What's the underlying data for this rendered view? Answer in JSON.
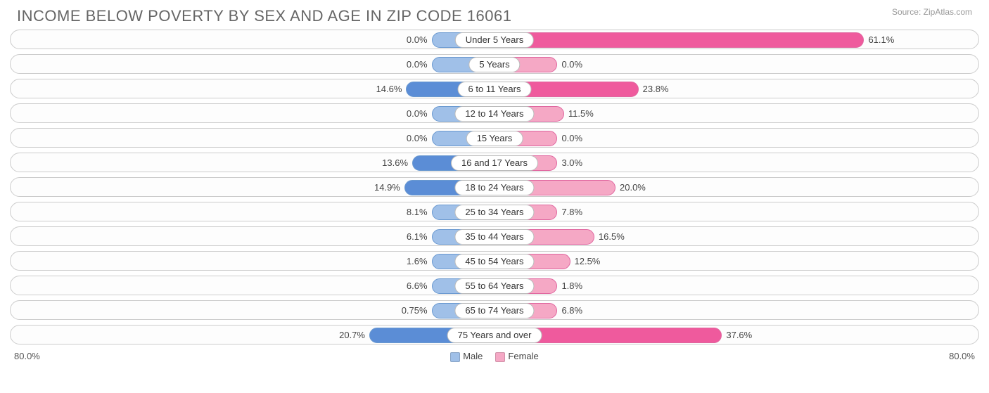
{
  "header": {
    "title": "INCOME BELOW POVERTY BY SEX AND AGE IN ZIP CODE 16061",
    "source": "Source: ZipAtlas.com"
  },
  "chart": {
    "type": "diverging-bar",
    "axis_max": 80.0,
    "axis_label_left": "80.0%",
    "axis_label_right": "80.0%",
    "min_bar_pct": 13.0,
    "colors": {
      "male_fill": "#a0c0e8",
      "male_border": "#6a99d0",
      "female_fill": "#f5a8c5",
      "female_border": "#e0669f",
      "male_solid": "#5b8dd6",
      "female_solid": "#ef5a9d",
      "track_border": "#cccccc",
      "text": "#444444"
    },
    "legend": [
      {
        "label": "Male",
        "color": "#a0c0e8"
      },
      {
        "label": "Female",
        "color": "#f5a8c5"
      }
    ],
    "rows": [
      {
        "category": "Under 5 Years",
        "male": 0.0,
        "female": 61.1,
        "male_label": "0.0%",
        "female_label": "61.1%",
        "female_solid": true
      },
      {
        "category": "5 Years",
        "male": 0.0,
        "female": 0.0,
        "male_label": "0.0%",
        "female_label": "0.0%"
      },
      {
        "category": "6 to 11 Years",
        "male": 14.6,
        "female": 23.8,
        "male_label": "14.6%",
        "female_label": "23.8%",
        "male_solid": true,
        "female_solid": true
      },
      {
        "category": "12 to 14 Years",
        "male": 0.0,
        "female": 11.5,
        "male_label": "0.0%",
        "female_label": "11.5%"
      },
      {
        "category": "15 Years",
        "male": 0.0,
        "female": 0.0,
        "male_label": "0.0%",
        "female_label": "0.0%"
      },
      {
        "category": "16 and 17 Years",
        "male": 13.6,
        "female": 3.0,
        "male_label": "13.6%",
        "female_label": "3.0%",
        "male_solid": true
      },
      {
        "category": "18 to 24 Years",
        "male": 14.9,
        "female": 20.0,
        "male_label": "14.9%",
        "female_label": "20.0%",
        "male_solid": true
      },
      {
        "category": "25 to 34 Years",
        "male": 8.1,
        "female": 7.8,
        "male_label": "8.1%",
        "female_label": "7.8%"
      },
      {
        "category": "35 to 44 Years",
        "male": 6.1,
        "female": 16.5,
        "male_label": "6.1%",
        "female_label": "16.5%"
      },
      {
        "category": "45 to 54 Years",
        "male": 1.6,
        "female": 12.5,
        "male_label": "1.6%",
        "female_label": "12.5%"
      },
      {
        "category": "55 to 64 Years",
        "male": 6.6,
        "female": 1.8,
        "male_label": "6.6%",
        "female_label": "1.8%"
      },
      {
        "category": "65 to 74 Years",
        "male": 0.75,
        "female": 6.8,
        "male_label": "0.75%",
        "female_label": "6.8%"
      },
      {
        "category": "75 Years and over",
        "male": 20.7,
        "female": 37.6,
        "male_label": "20.7%",
        "female_label": "37.6%",
        "male_solid": true,
        "female_solid": true
      }
    ]
  }
}
